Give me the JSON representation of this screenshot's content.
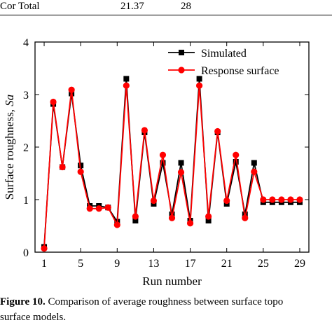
{
  "table": {
    "last_row": [
      "Cor Total",
      "21.37",
      "28"
    ]
  },
  "chart_data": {
    "type": "line",
    "xlabel": "Run number",
    "ylabel": "Surface roughness, Sa",
    "xlim": [
      0,
      30
    ],
    "ylim": [
      0,
      4
    ],
    "xticks": [
      1,
      5,
      9,
      13,
      17,
      21,
      25,
      29
    ],
    "yticks": [
      0,
      1,
      2,
      3,
      4
    ],
    "legend_position": "top-right",
    "x": [
      1,
      2,
      3,
      4,
      5,
      6,
      7,
      8,
      9,
      10,
      11,
      12,
      13,
      14,
      15,
      16,
      17,
      18,
      19,
      20,
      21,
      22,
      23,
      24,
      25,
      26,
      27,
      28,
      29
    ],
    "series": [
      {
        "name": "Simulated",
        "marker": "square",
        "color": "#000000",
        "values": [
          0.1,
          2.82,
          1.62,
          3.02,
          1.65,
          0.88,
          0.88,
          0.85,
          0.58,
          3.3,
          0.6,
          2.28,
          0.92,
          1.7,
          0.72,
          1.7,
          0.6,
          3.3,
          0.6,
          2.28,
          0.92,
          1.72,
          0.72,
          1.7,
          0.95,
          0.95,
          0.95,
          0.95,
          0.95
        ]
      },
      {
        "name": "Response surface",
        "marker": "circle",
        "color": "#ff0000",
        "values": [
          0.07,
          2.86,
          1.62,
          3.09,
          1.53,
          0.83,
          0.83,
          0.85,
          0.52,
          3.17,
          0.68,
          2.32,
          0.98,
          1.85,
          0.65,
          1.52,
          0.55,
          3.17,
          0.68,
          2.3,
          0.98,
          1.85,
          0.65,
          1.53,
          1.0,
          1.0,
          1.0,
          1.0,
          1.0
        ]
      }
    ]
  },
  "caption": {
    "label": "Figure 10.",
    "text": " Comparison of average roughness between surface topo",
    "line2": "surface models."
  }
}
